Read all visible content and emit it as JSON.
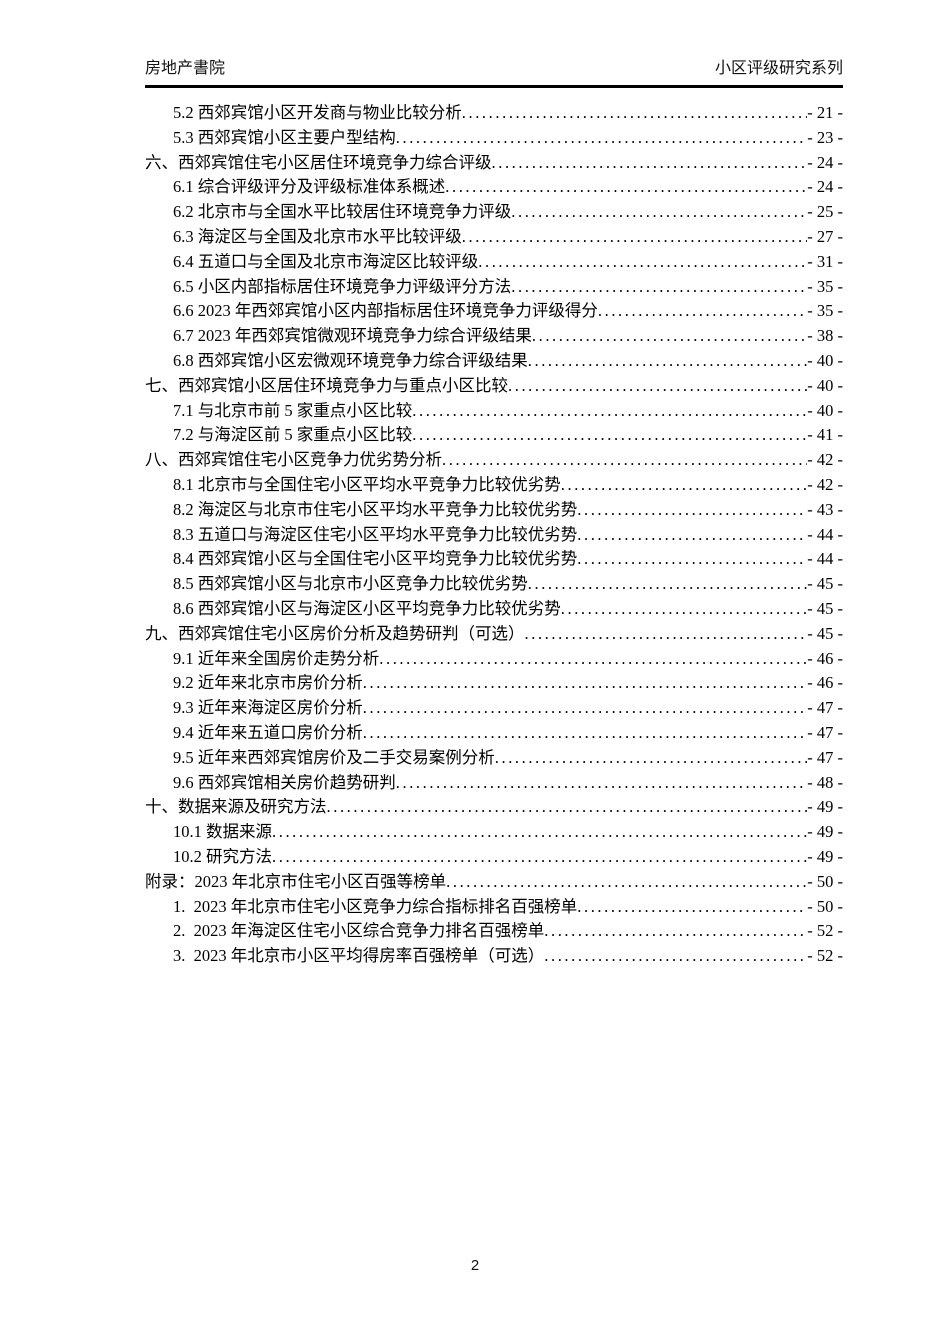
{
  "header": {
    "left": "房地产書院",
    "right": "小区评级研究系列"
  },
  "footer": {
    "page_number": "2"
  },
  "toc": {
    "entries": [
      {
        "level": 2,
        "title": "5.2 西郊宾馆小区开发商与物业比较分析",
        "page": "- 21 -"
      },
      {
        "level": 2,
        "title": "5.3 西郊宾馆小区主要户型结构",
        "page": "- 23 -"
      },
      {
        "level": 1,
        "title": "六、西郊宾馆住宅小区居住环境竞争力综合评级",
        "page": "- 24 -"
      },
      {
        "level": 2,
        "title": "6.1 综合评级评分及评级标准体系概述",
        "page": "- 24 -"
      },
      {
        "level": 2,
        "title": "6.2 北京市与全国水平比较居住环境竞争力评级",
        "page": "- 25 -"
      },
      {
        "level": 2,
        "title": "6.3 海淀区与全国及北京市水平比较评级",
        "page": "- 27 -"
      },
      {
        "level": 2,
        "title": "6.4 五道口与全国及北京市海淀区比较评级",
        "page": "- 31 -"
      },
      {
        "level": 2,
        "title": "6.5 小区内部指标居住环境竞争力评级评分方法",
        "page": "- 35 -"
      },
      {
        "level": 2,
        "title": "6.6 2023 年西郊宾馆小区内部指标居住环境竞争力评级得分",
        "page": "- 35 -"
      },
      {
        "level": 2,
        "title": "6.7 2023 年西郊宾馆微观环境竞争力综合评级结果",
        "page": "- 38 -"
      },
      {
        "level": 2,
        "title": "6.8 西郊宾馆小区宏微观环境竞争力综合评级结果",
        "page": "- 40 -"
      },
      {
        "level": 1,
        "title": "七、西郊宾馆小区居住环境竞争力与重点小区比较",
        "page": "- 40 -"
      },
      {
        "level": 2,
        "title": "7.1 与北京市前 5 家重点小区比较",
        "page": "- 40 -"
      },
      {
        "level": 2,
        "title": "7.2 与海淀区前 5 家重点小区比较",
        "page": "- 41 -"
      },
      {
        "level": 1,
        "title": "八、西郊宾馆住宅小区竞争力优劣势分析",
        "page": "- 42 -"
      },
      {
        "level": 2,
        "title": "8.1 北京市与全国住宅小区平均水平竞争力比较优劣势",
        "page": "- 42 -"
      },
      {
        "level": 2,
        "title": "8.2 海淀区与北京市住宅小区平均水平竞争力比较优劣势",
        "page": "- 43 -"
      },
      {
        "level": 2,
        "title": "8.3 五道口与海淀区住宅小区平均水平竞争力比较优劣势",
        "page": "- 44 -"
      },
      {
        "level": 2,
        "title": "8.4 西郊宾馆小区与全国住宅小区平均竞争力比较优劣势",
        "page": "- 44 -"
      },
      {
        "level": 2,
        "title": "8.5 西郊宾馆小区与北京市小区竞争力比较优劣势",
        "page": "- 45 -"
      },
      {
        "level": 2,
        "title": "8.6 西郊宾馆小区与海淀区小区平均竞争力比较优劣势",
        "page": "- 45 -"
      },
      {
        "level": 1,
        "title": "九、西郊宾馆住宅小区房价分析及趋势研判（可选）",
        "page": "- 45 -"
      },
      {
        "level": 2,
        "title": "9.1 近年来全国房价走势分析",
        "page": "- 46 -"
      },
      {
        "level": 2,
        "title": "9.2 近年来北京市房价分析",
        "page": "- 46 -"
      },
      {
        "level": 2,
        "title": "9.3 近年来海淀区房价分析",
        "page": "- 47 -"
      },
      {
        "level": 2,
        "title": "9.4 近年来五道口房价分析",
        "page": "- 47 -"
      },
      {
        "level": 2,
        "title": "9.5 近年来西郊宾馆房价及二手交易案例分析",
        "page": "- 47 -"
      },
      {
        "level": 2,
        "title": "9.6 西郊宾馆相关房价趋势研判",
        "page": "- 48 -"
      },
      {
        "level": 1,
        "title": "十、数据来源及研究方法",
        "page": "- 49 -"
      },
      {
        "level": 2,
        "title": "10.1 数据来源",
        "page": "- 49 -"
      },
      {
        "level": 2,
        "title": "10.2 研究方法",
        "page": "- 49 -"
      },
      {
        "level": 1,
        "title": "附录：2023 年北京市住宅小区百强等榜单",
        "page": "- 50 -"
      },
      {
        "level": 2,
        "title": "1.  2023 年北京市住宅小区竞争力综合指标排名百强榜单",
        "page": "- 50 -"
      },
      {
        "level": 2,
        "title": "2.  2023 年海淀区住宅小区综合竞争力排名百强榜单",
        "page": "- 52 -"
      },
      {
        "level": 2,
        "title": "3.  2023 年北京市小区平均得房率百强榜单（可选）",
        "page": "- 52 -"
      }
    ]
  }
}
